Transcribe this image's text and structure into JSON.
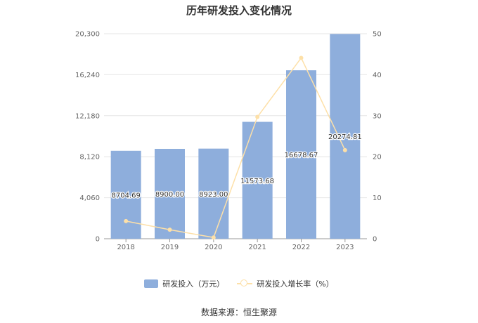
{
  "chart_data": {
    "type": "bar",
    "title": "历年研发投入变化情况",
    "categories": [
      "2018",
      "2019",
      "2020",
      "2021",
      "2022",
      "2023"
    ],
    "series": [
      {
        "name": "研发投入（万元）",
        "type": "bar",
        "axis": "left",
        "values": [
          8704.69,
          8900.0,
          8923.0,
          11573.68,
          16678.67,
          20274.81
        ],
        "labels": [
          "8704.69",
          "8900.00",
          "8923.00",
          "11573.68",
          "16678.67",
          "20274.81"
        ],
        "color": "#8eaedc"
      },
      {
        "name": "研发投入增长率（%）",
        "type": "line",
        "axis": "right",
        "values": [
          4.3,
          2.2,
          0.3,
          29.7,
          44.1,
          21.6
        ],
        "color": "#fde0a8"
      }
    ],
    "y_left": {
      "ticks": [
        "0",
        "4,060",
        "8,120",
        "12,180",
        "16,240",
        "20,300"
      ],
      "ylim": [
        0,
        20300
      ]
    },
    "y_right": {
      "ticks": [
        "0",
        "10",
        "20",
        "30",
        "40",
        "50"
      ],
      "ylim": [
        0,
        50
      ]
    },
    "grid": true,
    "legend_position": "bottom"
  },
  "source_text": "数据来源：恒生聚源"
}
